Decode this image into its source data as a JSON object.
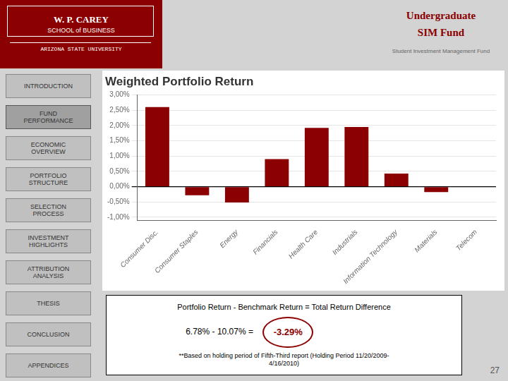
{
  "chart_data": {
    "type": "bar",
    "title": "Weighted Portfolio Return",
    "categories": [
      "Consumer Disc.",
      "Consumer Staples",
      "Energy",
      "Financials",
      "Health Care",
      "Industrials",
      "Information Technology",
      "Materials",
      "Telecom"
    ],
    "values": [
      2.6,
      -0.28,
      -0.52,
      0.9,
      1.92,
      1.95,
      0.43,
      -0.18,
      0.0
    ],
    "color": "#8B0000",
    "ylim": [
      -1.1,
      3.0
    ],
    "yticks": [
      {
        "value": -1.0,
        "label": "-1,00%"
      },
      {
        "value": -0.5,
        "label": "-0,50%"
      },
      {
        "value": 0.0,
        "label": "0,00%"
      },
      {
        "value": 0.5,
        "label": "0,50%"
      },
      {
        "value": 1.0,
        "label": "1,00%"
      },
      {
        "value": 1.5,
        "label": "1,50%"
      },
      {
        "value": 2.0,
        "label": "2,00%"
      },
      {
        "value": 2.5,
        "label": "2,50%"
      },
      {
        "value": 3.0,
        "label": "3,00%"
      }
    ],
    "grid": true,
    "annotations": [
      "W. P. CAREY",
      "SCHOOL of BUSINESS",
      "ARIZONA STATE UNIVERSITY",
      "Undergraduate",
      "SIM Fund",
      "Student Investment Management Fund",
      "INTRODUCTION",
      "FUND\nPERFORMANCE",
      "ECONOMIC\nOVERVIEW",
      "PORTFOLIO\nSTRUCTURE",
      "SELECTION\nPROCESS",
      "INVESTMENT\nHIGHLIGHTS",
      "ATTRIBUTION\nANALYSIS",
      "THESIS",
      "CONCLUSION",
      "APPENDICES",
      "Portfolio Return - Benchmark Return = Total Return Difference",
      "6.78% - 10.07% = ",
      "-3.29%",
      "**Based on holding period of Fifth-Third report (Holding Period 11/20/2009-\n4/16/2010)",
      "27"
    ]
  }
}
